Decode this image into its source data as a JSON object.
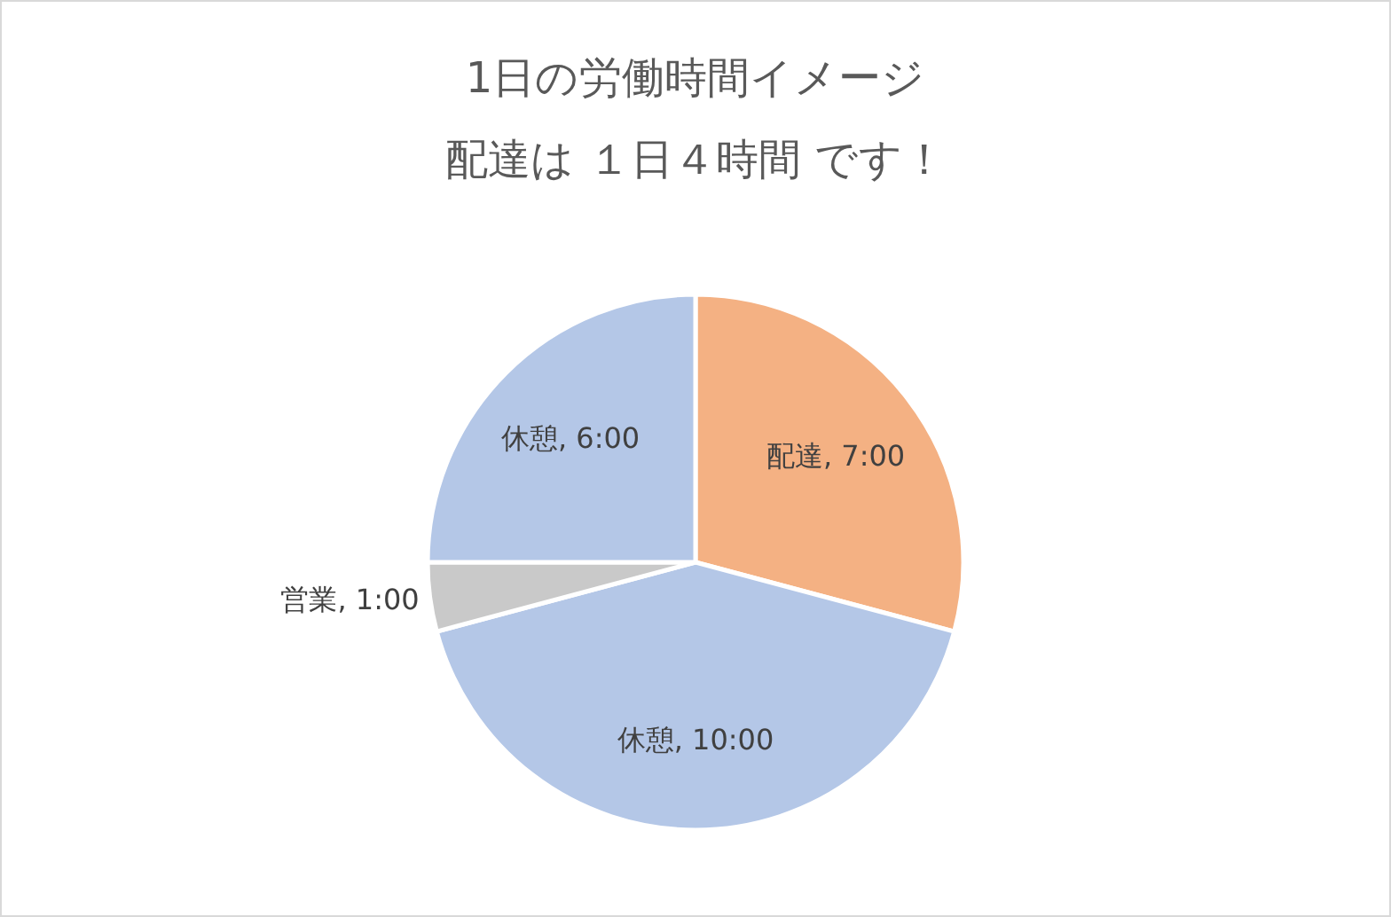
{
  "chart_data": {
    "type": "pie",
    "title": "1日の労働時間イメージ",
    "subtitle": "配達は １日４時間 です！",
    "categories": [
      "配達",
      "休憩",
      "営業",
      "休憩"
    ],
    "values": [
      7,
      10,
      1,
      6
    ],
    "value_labels": [
      "7:00",
      "10:00",
      "1:00",
      "6:00"
    ],
    "colors": [
      "#f4b183",
      "#b4c7e7",
      "#c9c9c9",
      "#b4c7e7"
    ],
    "legend": false
  }
}
